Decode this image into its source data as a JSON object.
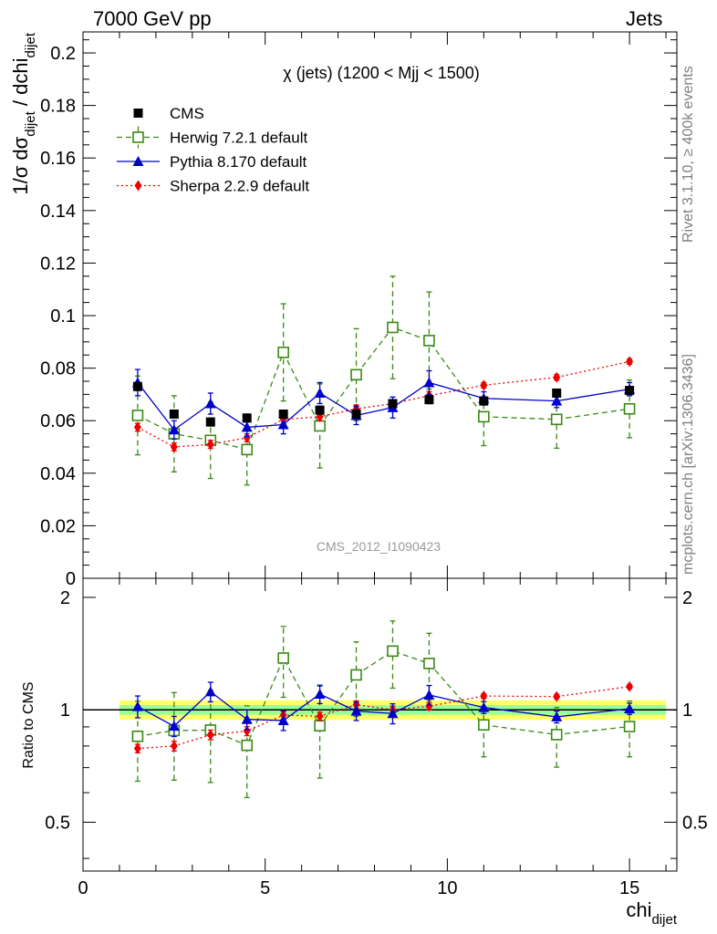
{
  "header": {
    "left": "7000 GeV pp",
    "right": "Jets"
  },
  "side_text": {
    "rivet": "Rivet 3.1.10, ≥ 400k events",
    "mcplots": "mcplots.cern.ch [arXiv:1306.3436]"
  },
  "watermark": "CMS_2012_I1090423",
  "chart_data": {
    "type": "scatter",
    "title": "χ (jets) (1200 < Mjj < 1500)",
    "xlabel": "chi",
    "xlabel_sub": "dijet",
    "ylabel": "1/σ dσ / dchi",
    "ylabel_sub": "dijet",
    "xlim": [
      0,
      16.3
    ],
    "ylim": [
      0,
      0.208
    ],
    "x_ticks": [
      "0",
      "5",
      "10",
      "15"
    ],
    "y_ticks": [
      "0",
      "0.02",
      "0.04",
      "0.06",
      "0.08",
      "0.1",
      "0.12",
      "0.14",
      "0.16",
      "0.18",
      "0.2"
    ],
    "ratio": {
      "ylabel": "Ratio to CMS",
      "scale": "log",
      "ylim": [
        0.37,
        2.25
      ],
      "y_ticks": [
        "0.5",
        "1",
        "2"
      ],
      "band_inner": 0.03,
      "band_outer": 0.06
    },
    "x": [
      1.5,
      2.5,
      3.5,
      4.5,
      5.5,
      6.5,
      7.5,
      8.5,
      9.5,
      11,
      13,
      15
    ],
    "series": [
      {
        "name": "CMS",
        "color": "#000000",
        "marker": "filled-square",
        "values": [
          0.073,
          0.0625,
          0.0595,
          0.061,
          0.0625,
          0.064,
          0.0625,
          0.0665,
          0.068,
          0.0675,
          0.0705,
          0.0715
        ],
        "errors": [
          0.0015,
          0.0015,
          0.0015,
          0.0015,
          0.0015,
          0.0015,
          0.0015,
          0.0015,
          0.0015,
          0.0015,
          0.0015,
          0.0015
        ]
      },
      {
        "name": "Herwig 7.2.1 default",
        "color": "#3a8a12",
        "marker": "open-square",
        "values": [
          0.062,
          0.055,
          0.0525,
          0.049,
          0.086,
          0.058,
          0.0775,
          0.0955,
          0.0905,
          0.0615,
          0.0605,
          0.0645
        ],
        "errors": [
          0.015,
          0.0145,
          0.0145,
          0.0135,
          0.0185,
          0.016,
          0.0175,
          0.0195,
          0.0185,
          0.011,
          0.011,
          0.011
        ]
      },
      {
        "name": "Pythia 8.170 default",
        "color": "#0000cc",
        "marker": "filled-triangle",
        "values": [
          0.0745,
          0.0565,
          0.0665,
          0.0575,
          0.0585,
          0.0705,
          0.062,
          0.065,
          0.0745,
          0.0685,
          0.0675,
          0.072
        ],
        "errors": [
          0.005,
          0.0035,
          0.004,
          0.0035,
          0.0035,
          0.004,
          0.0035,
          0.004,
          0.0045,
          0.0025,
          0.0025,
          0.0025
        ]
      },
      {
        "name": "Sherpa 2.2.9 default",
        "color": "#ee0000",
        "marker": "filled-diamond",
        "values": [
          0.0575,
          0.05,
          0.051,
          0.0535,
          0.0605,
          0.0615,
          0.0645,
          0.0665,
          0.0695,
          0.0735,
          0.0765,
          0.0825
        ],
        "errors": [
          0.0015,
          0.0015,
          0.0015,
          0.0015,
          0.0015,
          0.0015,
          0.0015,
          0.0015,
          0.0015,
          0.001,
          0.001,
          0.001
        ]
      }
    ]
  }
}
